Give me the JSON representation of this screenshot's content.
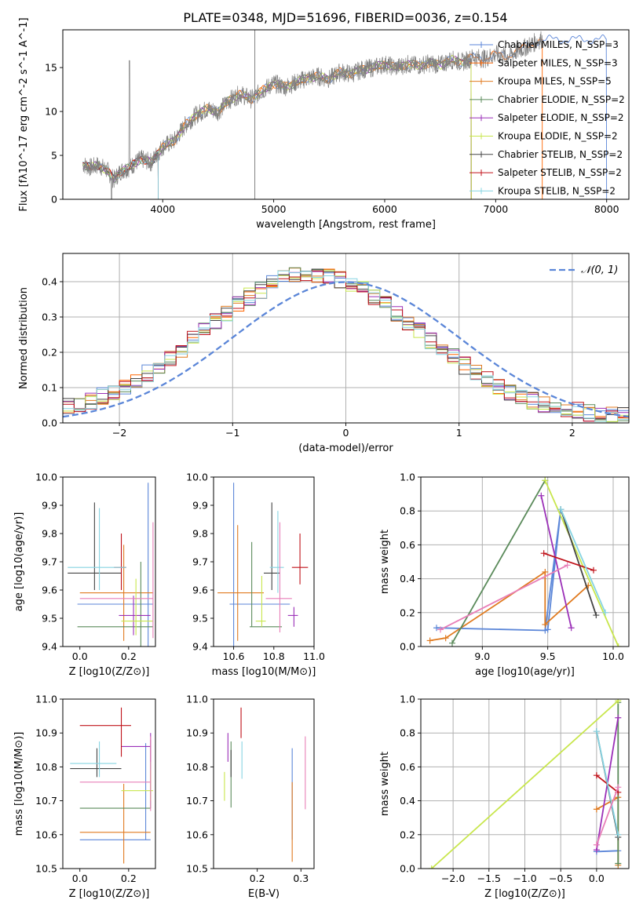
{
  "title": "PLATE=0348, MJD=51696, FIBERID=0036, z=0.154",
  "chart_data": [
    {
      "id": "spectrum",
      "type": "line",
      "xlabel": "wavelength [Angstrom, rest frame]",
      "ylabel": "Flux [fλ10^-17 erg cm^-2 s^-1 A^-1]",
      "xlim": [
        3100,
        8200
      ],
      "ylim": [
        0,
        19.3
      ],
      "xticks": [
        4000,
        5000,
        6000,
        7000,
        8000
      ],
      "yticks": [
        0,
        5,
        10,
        15
      ],
      "grid": false,
      "legend": "upper-right",
      "data_x": [
        3280,
        3350,
        3420,
        3500,
        3560,
        3620,
        3700,
        3800,
        3900,
        3950,
        4000,
        4100,
        4200,
        4300,
        4400,
        4500,
        4600,
        4700,
        4800,
        4900,
        5000,
        5100,
        5200,
        5300,
        5400,
        5500,
        5600,
        5700,
        5800,
        5900,
        6000,
        6100,
        6200,
        6300,
        6400,
        6500,
        6600,
        6700,
        6800,
        6900,
        7000,
        7100,
        7200,
        7300,
        7400
      ],
      "data_y": [
        4.0,
        3.6,
        3.9,
        3.3,
        2.2,
        3.2,
        3.6,
        4.6,
        4.2,
        5.2,
        6.0,
        6.6,
        8.4,
        9.6,
        10.3,
        10.0,
        11.3,
        12.0,
        11.4,
        12.4,
        13.2,
        12.8,
        13.3,
        13.8,
        14.0,
        13.7,
        14.5,
        14.3,
        14.8,
        15.0,
        15.4,
        15.0,
        15.4,
        15.2,
        15.5,
        15.3,
        15.9,
        15.6,
        16.2,
        16.0,
        16.5,
        16.3,
        16.9,
        17.5,
        18.2
      ],
      "series": [
        {
          "name": "Chabrier MILES, N_SSP=3",
          "color": "#5b86d8",
          "model_end": 8000
        },
        {
          "name": "Salpeter MILES, N_SSP=3",
          "color": "#ff6600",
          "model_end": 7420
        },
        {
          "name": "Kroupa MILES, N_SSP=5",
          "color": "#e07a1f",
          "model_end": 6780
        },
        {
          "name": "Chabrier ELODIE, N_SSP=2",
          "color": "#5a8a5a",
          "model_end": 6780
        },
        {
          "name": "Salpeter ELODIE, N_SSP=2",
          "color": "#9b30b8",
          "model_end": 6780
        },
        {
          "name": "Kroupa ELODIE, N_SSP=2",
          "color": "#c8e64c",
          "model_end": 6780
        },
        {
          "name": "Chabrier STELIB, N_SSP=2",
          "color": "#444444",
          "model_end": 3960
        },
        {
          "name": "Salpeter STELIB, N_SSP=2",
          "color": "#c0121a",
          "model_end": 3960
        },
        {
          "name": "Kroupa STELIB, N_SSP=2",
          "color": "#86d4e2",
          "model_end": 3960
        }
      ]
    },
    {
      "id": "residuals",
      "type": "histogram",
      "xlabel": "(data-model)/error",
      "ylabel": "Normed distribution",
      "xlim": [
        -2.5,
        2.5
      ],
      "ylim": [
        0,
        0.48
      ],
      "xticks": [
        -2,
        -1,
        0,
        1,
        2
      ],
      "yticks": [
        0.0,
        0.1,
        0.2,
        0.3,
        0.4
      ],
      "grid": true,
      "legend": "upper-right",
      "reference_label": "𝒩(0, 1)",
      "reference_color": "#5b86d8"
    },
    {
      "id": "age-vs-Z",
      "type": "errorbar",
      "xlabel": "Z [log10(Z/Z⊙)]",
      "ylabel": "age  [log10(age/yr)]",
      "xlim": [
        -0.07,
        0.31
      ],
      "ylim": [
        9.4,
        10.0
      ],
      "xticks": [
        0.0,
        0.2
      ],
      "yticks": [
        9.4,
        9.5,
        9.6,
        9.7,
        9.8,
        9.9,
        10.0
      ],
      "points": [
        {
          "x": 0.28,
          "y": 9.55,
          "xmin": -0.01,
          "xmax": 0.3,
          "ymin": 9.4,
          "ymax": 9.98,
          "color": "#5b86d8"
        },
        {
          "x": 0.18,
          "y": 9.59,
          "xmin": 0.0,
          "xmax": 0.3,
          "ymin": 9.42,
          "ymax": 9.76,
          "color": "#e07a1f"
        },
        {
          "x": 0.25,
          "y": 9.47,
          "xmin": -0.01,
          "xmax": 0.3,
          "ymin": 9.4,
          "ymax": 9.7,
          "color": "#5a8a5a"
        },
        {
          "x": 0.22,
          "y": 9.51,
          "xmin": 0.16,
          "xmax": 0.29,
          "ymin": 9.44,
          "ymax": 9.58,
          "color": "#9b30b8"
        },
        {
          "x": 0.23,
          "y": 9.49,
          "xmin": 0.17,
          "xmax": 0.3,
          "ymin": 9.44,
          "ymax": 9.64,
          "color": "#c8e64c"
        },
        {
          "x": 0.06,
          "y": 9.66,
          "xmin": -0.05,
          "xmax": 0.17,
          "ymin": 9.6,
          "ymax": 9.91,
          "color": "#444444"
        },
        {
          "x": 0.17,
          "y": 9.68,
          "xmin": 0.14,
          "xmax": 0.19,
          "ymin": 9.6,
          "ymax": 9.8,
          "color": "#c0121a"
        },
        {
          "x": 0.08,
          "y": 9.68,
          "xmin": -0.05,
          "xmax": 0.19,
          "ymin": 9.6,
          "ymax": 9.89,
          "color": "#86d4e2"
        },
        {
          "x": 0.3,
          "y": 9.57,
          "xmin": 0.0,
          "xmax": 0.3,
          "ymin": 9.43,
          "ymax": 9.84,
          "color": "#e87fb8"
        }
      ]
    },
    {
      "id": "age-vs-mass",
      "type": "errorbar",
      "xlabel": "mass [log10(M/M⊙)]",
      "ylabel": "",
      "xlim": [
        10.5,
        11.0
      ],
      "ylim": [
        9.4,
        10.0
      ],
      "xticks": [
        10.6,
        10.8,
        11.0
      ],
      "yticks": [
        9.4,
        9.5,
        9.6,
        9.7,
        9.8,
        9.9,
        10.0
      ],
      "points": [
        {
          "x": 10.6,
          "y": 9.55,
          "xmin": 10.58,
          "xmax": 10.88,
          "ymin": 9.4,
          "ymax": 9.98,
          "color": "#5b86d8"
        },
        {
          "x": 10.62,
          "y": 9.59,
          "xmin": 10.52,
          "xmax": 10.75,
          "ymin": 9.42,
          "ymax": 9.83,
          "color": "#e07a1f"
        },
        {
          "x": 10.69,
          "y": 9.47,
          "xmin": 10.68,
          "xmax": 10.84,
          "ymin": 9.47,
          "ymax": 9.77,
          "color": "#5a8a5a"
        },
        {
          "x": 10.9,
          "y": 9.51,
          "xmin": 10.87,
          "xmax": 10.92,
          "ymin": 9.47,
          "ymax": 9.54,
          "color": "#9b30b8"
        },
        {
          "x": 10.74,
          "y": 9.49,
          "xmin": 10.71,
          "xmax": 10.76,
          "ymin": 9.47,
          "ymax": 9.65,
          "color": "#c8e64c"
        },
        {
          "x": 10.79,
          "y": 9.66,
          "xmin": 10.75,
          "xmax": 10.83,
          "ymin": 9.6,
          "ymax": 9.91,
          "color": "#444444"
        },
        {
          "x": 10.93,
          "y": 9.68,
          "xmin": 10.89,
          "xmax": 10.97,
          "ymin": 9.62,
          "ymax": 9.8,
          "color": "#c0121a"
        },
        {
          "x": 10.82,
          "y": 9.68,
          "xmin": 10.78,
          "xmax": 10.85,
          "ymin": 9.59,
          "ymax": 9.88,
          "color": "#86d4e2"
        },
        {
          "x": 10.83,
          "y": 9.57,
          "xmin": 10.76,
          "xmax": 10.89,
          "ymin": 9.45,
          "ymax": 9.84,
          "color": "#e87fb8"
        }
      ]
    },
    {
      "id": "weight-vs-age",
      "type": "line",
      "xlabel": "age  [log10(age/yr)]",
      "ylabel": "mass weight",
      "xlim": [
        8.53,
        10.12
      ],
      "ylim": [
        0.0,
        1.0
      ],
      "xticks": [
        9.0,
        9.5,
        10.0
      ],
      "yticks": [
        0.0,
        0.2,
        0.4,
        0.6,
        0.8,
        1.0
      ],
      "grid": true,
      "series": [
        {
          "color": "#5b86d8",
          "x": [
            8.65,
            9.48,
            9.6,
            9.5
          ],
          "y": [
            0.11,
            0.095,
            0.81,
            0.1
          ]
        },
        {
          "color": "#e07a1f",
          "x": [
            8.6,
            8.72,
            9.48,
            9.48,
            9.81
          ],
          "y": [
            0.035,
            0.05,
            0.44,
            0.13,
            0.36
          ]
        },
        {
          "color": "#5a8a5a",
          "x": [
            8.77,
            9.48
          ],
          "y": [
            0.02,
            0.98
          ]
        },
        {
          "color": "#9b30b8",
          "x": [
            9.45,
            9.68
          ],
          "y": [
            0.89,
            0.11
          ]
        },
        {
          "color": "#c8e64c",
          "x": [
            9.48,
            10.04
          ],
          "y": [
            0.98,
            0.0
          ]
        },
        {
          "color": "#444444",
          "x": [
            9.6,
            9.87
          ],
          "y": [
            0.81,
            0.185
          ]
        },
        {
          "color": "#c0121a",
          "x": [
            9.47,
            9.85
          ],
          "y": [
            0.55,
            0.45
          ]
        },
        {
          "color": "#86d4e2",
          "x": [
            9.6,
            9.94
          ],
          "y": [
            0.81,
            0.2
          ]
        },
        {
          "color": "#e87fb8",
          "x": [
            8.68,
            9.65
          ],
          "y": [
            0.1,
            0.48
          ]
        }
      ]
    },
    {
      "id": "mass-vs-Z",
      "type": "errorbar",
      "xlabel": "Z [log10(Z/Z⊙)]",
      "ylabel": "mass [log10(M/M⊙)]",
      "xlim": [
        -0.07,
        0.31
      ],
      "ylim": [
        10.5,
        11.0
      ],
      "xticks": [
        0.0,
        0.2
      ],
      "yticks": [
        10.5,
        10.6,
        10.7,
        10.8,
        10.9,
        11.0
      ],
      "points": [
        {
          "x": 0.27,
          "y": 10.585,
          "xmin": 0.0,
          "xmax": 0.29,
          "ymin": 10.585,
          "ymax": 10.87,
          "color": "#5b86d8"
        },
        {
          "x": 0.18,
          "y": 10.607,
          "xmin": 0.0,
          "xmax": 0.29,
          "ymin": 10.515,
          "ymax": 10.75,
          "color": "#e07a1f"
        },
        {
          "x": 0.29,
          "y": 10.678,
          "xmin": 0.0,
          "xmax": 0.29,
          "ymin": 10.678,
          "ymax": 10.88,
          "color": "#5a8a5a"
        },
        {
          "x": 0.29,
          "y": 10.86,
          "xmin": 0.17,
          "xmax": 0.29,
          "ymin": 10.815,
          "ymax": 10.9,
          "color": "#9b30b8"
        },
        {
          "x": 0.29,
          "y": 10.73,
          "xmin": 0.17,
          "xmax": 0.3,
          "ymin": 10.7,
          "ymax": 10.79,
          "color": "#c8e64c"
        },
        {
          "x": 0.07,
          "y": 10.795,
          "xmin": -0.04,
          "xmax": 0.17,
          "ymin": 10.77,
          "ymax": 10.855,
          "color": "#444444"
        },
        {
          "x": 0.17,
          "y": 10.922,
          "xmin": 0.0,
          "xmax": 0.21,
          "ymin": 10.83,
          "ymax": 10.975,
          "color": "#c0121a"
        },
        {
          "x": 0.08,
          "y": 10.81,
          "xmin": -0.04,
          "xmax": 0.15,
          "ymin": 10.77,
          "ymax": 10.875,
          "color": "#86d4e2"
        },
        {
          "x": 0.29,
          "y": 10.755,
          "xmin": 0.0,
          "xmax": 0.29,
          "ymin": 10.67,
          "ymax": 10.89,
          "color": "#e87fb8"
        }
      ]
    },
    {
      "id": "mass-vs-ebv",
      "type": "errorbar",
      "xlabel": "E(B-V)",
      "ylabel": "",
      "xlim": [
        0.1,
        0.33
      ],
      "ylim": [
        10.5,
        11.0
      ],
      "xticks": [
        0.2,
        0.3
      ],
      "yticks": [
        10.5,
        10.6,
        10.7,
        10.8,
        10.9,
        11.0
      ],
      "points": [
        {
          "x": 0.28,
          "y": 10.75,
          "ymin": 10.585,
          "ymax": 10.855,
          "color": "#5b86d8"
        },
        {
          "x": 0.28,
          "y": 10.6,
          "ymin": 10.52,
          "ymax": 10.755,
          "color": "#e07a1f"
        },
        {
          "x": 0.14,
          "y": 10.78,
          "ymin": 10.68,
          "ymax": 10.875,
          "color": "#5a8a5a"
        },
        {
          "x": 0.133,
          "y": 10.86,
          "ymin": 10.815,
          "ymax": 10.9,
          "color": "#9b30b8"
        },
        {
          "x": 0.125,
          "y": 10.74,
          "ymin": 10.7,
          "ymax": 10.785,
          "color": "#c8e64c"
        },
        {
          "x": 0.14,
          "y": 10.8,
          "ymin": 10.77,
          "ymax": 10.85,
          "color": "#444444"
        },
        {
          "x": 0.163,
          "y": 10.93,
          "ymin": 10.885,
          "ymax": 10.975,
          "color": "#c0121a"
        },
        {
          "x": 0.165,
          "y": 10.81,
          "ymin": 10.765,
          "ymax": 10.875,
          "color": "#86d4e2"
        },
        {
          "x": 0.31,
          "y": 10.78,
          "ymin": 10.675,
          "ymax": 10.89,
          "color": "#e87fb8"
        }
      ]
    },
    {
      "id": "weight-vs-Z",
      "type": "line",
      "xlabel": "Z [log10(Z/Z⊙)]",
      "ylabel": "mass weight",
      "xlim": [
        -2.45,
        0.45
      ],
      "ylim": [
        0.0,
        1.0
      ],
      "xticks": [
        -2.0,
        -1.5,
        -1.0,
        -0.5,
        0.0
      ],
      "yticks": [
        0.0,
        0.2,
        0.4,
        0.6,
        0.8,
        1.0
      ],
      "grid": true,
      "series": [
        {
          "color": "#5b86d8",
          "x": [
            0.0,
            0.3
          ],
          "y": [
            0.1,
            0.105
          ]
        },
        {
          "color": "#e07a1f",
          "x": [
            0.0,
            0.3,
            0.3
          ],
          "y": [
            0.35,
            0.42,
            0.02
          ]
        },
        {
          "color": "#5a8a5a",
          "x": [
            0.3,
            0.3
          ],
          "y": [
            0.98,
            0.03
          ]
        },
        {
          "color": "#9b30b8",
          "x": [
            0.0,
            0.3
          ],
          "y": [
            0.11,
            0.89
          ]
        },
        {
          "color": "#c8e64c",
          "x": [
            -2.3,
            0.3
          ],
          "y": [
            0.0,
            0.99
          ]
        },
        {
          "color": "#444444",
          "x": [
            0.0,
            0.3
          ],
          "y": [
            0.81,
            0.185
          ]
        },
        {
          "color": "#c0121a",
          "x": [
            0.0,
            0.3
          ],
          "y": [
            0.55,
            0.45
          ]
        },
        {
          "color": "#86d4e2",
          "x": [
            0.0,
            0.3
          ],
          "y": [
            0.81,
            0.2
          ]
        },
        {
          "color": "#e87fb8",
          "x": [
            0.0,
            0.3
          ],
          "y": [
            0.14,
            0.48
          ]
        }
      ]
    }
  ]
}
